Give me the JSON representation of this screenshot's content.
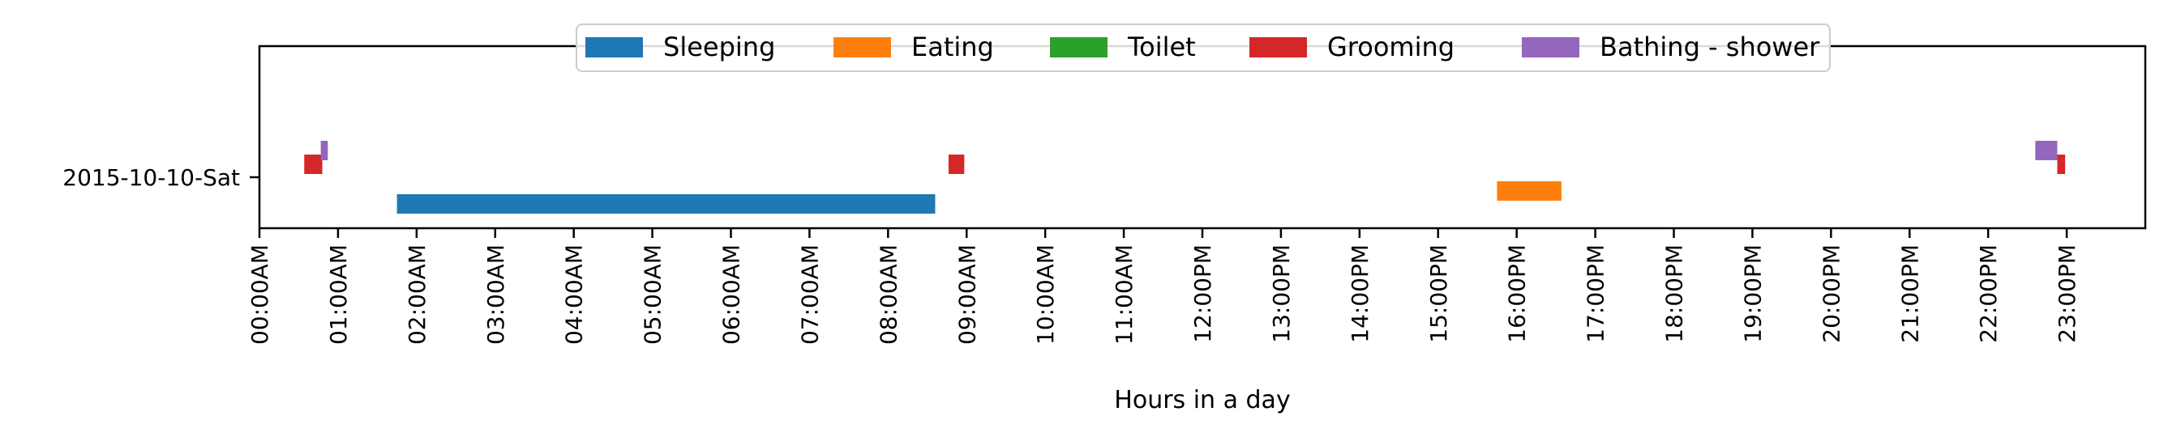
{
  "chart_data": {
    "type": "timeline",
    "title": "",
    "xlabel": "Hours in a day",
    "ylabel": "",
    "xlim": [
      0,
      24
    ],
    "categories": [
      "2015-10-10-Sat"
    ],
    "x_ticks": [
      "00:00AM",
      "01:00AM",
      "02:00AM",
      "03:00AM",
      "04:00AM",
      "05:00AM",
      "06:00AM",
      "07:00AM",
      "08:00AM",
      "09:00AM",
      "10:00AM",
      "11:00AM",
      "12:00PM",
      "13:00PM",
      "14:00PM",
      "15:00PM",
      "16:00PM",
      "17:00PM",
      "18:00PM",
      "19:00PM",
      "20:00PM",
      "21:00PM",
      "22:00PM",
      "23:00PM"
    ],
    "grid": false,
    "legend_position": "top-center",
    "series": [
      {
        "name": "Sleeping",
        "color": "#1f77b4",
        "lane": 0,
        "intervals": [
          [
            1.75,
            8.6
          ]
        ]
      },
      {
        "name": "Eating",
        "color": "#ff7f0e",
        "lane": 1,
        "intervals": [
          [
            15.75,
            16.57
          ]
        ]
      },
      {
        "name": "Toilet",
        "color": "#2ca02c",
        "lane": 2,
        "intervals": []
      },
      {
        "name": "Grooming",
        "color": "#d62728",
        "lane": 3,
        "intervals": [
          [
            0.57,
            0.8
          ],
          [
            8.77,
            8.97
          ],
          [
            22.88,
            22.98
          ]
        ]
      },
      {
        "name": "Bathing - shower",
        "color": "#9467bd",
        "lane": 4,
        "intervals": [
          [
            0.78,
            0.87
          ],
          [
            22.6,
            22.88
          ]
        ]
      }
    ]
  }
}
